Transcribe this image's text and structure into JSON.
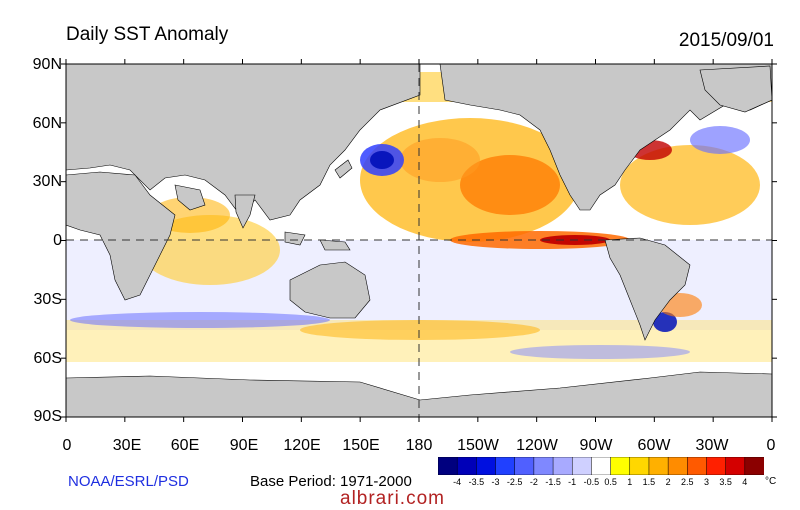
{
  "header": {
    "title": "Daily SST Anomaly",
    "date": "2015/09/01"
  },
  "map": {
    "lat_labels": [
      "90N",
      "60N",
      "30N",
      "0",
      "30S",
      "60S",
      "90S"
    ],
    "lon_labels": [
      "0",
      "30E",
      "60E",
      "90E",
      "120E",
      "150E",
      "180",
      "150W",
      "120W",
      "90W",
      "60W",
      "30W",
      "0"
    ],
    "land_color": "#c8c8c8",
    "ocean_base_color": "#ffffff"
  },
  "footer": {
    "credit": "NOAA/ESRL/PSD",
    "base_period": "Base Period: 1971-2000",
    "watermark": "albrari.com"
  },
  "colorbar": {
    "unit": "°C",
    "ticks": [
      "-4",
      "-3.5",
      "-3",
      "-2.5",
      "-2",
      "-1.5",
      "-1",
      "-0.5",
      "0.5",
      "1",
      "1.5",
      "2",
      "2.5",
      "3",
      "3.5",
      "4"
    ],
    "colors": [
      "#00007f",
      "#0000b8",
      "#0010e0",
      "#2040ff",
      "#5060ff",
      "#7f88ff",
      "#a8aaff",
      "#cfd0ff",
      "#ffffff",
      "#ffff00",
      "#ffd700",
      "#ffb000",
      "#ff8c00",
      "#ff5a00",
      "#ff2000",
      "#d40000",
      "#8b0000"
    ]
  }
}
